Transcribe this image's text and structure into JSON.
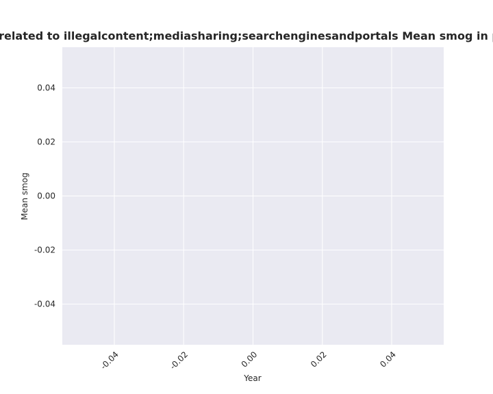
{
  "chart_data": {
    "type": "line",
    "title": "ies are related to illegalcontent;mediasharing;searchenginesandportals Mean smog in privacy",
    "x_label": "Year",
    "y_label": "Mean smog",
    "x": [],
    "values": [],
    "xlim": [
      -0.055,
      0.055
    ],
    "ylim": [
      -0.055,
      0.055
    ],
    "xticks": [
      {
        "value": -0.04,
        "label": "-0.04"
      },
      {
        "value": -0.02,
        "label": "-0.02"
      },
      {
        "value": 0,
        "label": "0.00"
      },
      {
        "value": 0.02,
        "label": "0.02"
      },
      {
        "value": 0.04,
        "label": "0.04"
      }
    ],
    "yticks": [
      {
        "value": -0.04,
        "label": "-0.04"
      },
      {
        "value": -0.02,
        "label": "-0.02"
      },
      {
        "value": 0,
        "label": "0.00"
      },
      {
        "value": 0.02,
        "label": "0.02"
      },
      {
        "value": 0.04,
        "label": "0.04"
      }
    ],
    "grid": true
  }
}
